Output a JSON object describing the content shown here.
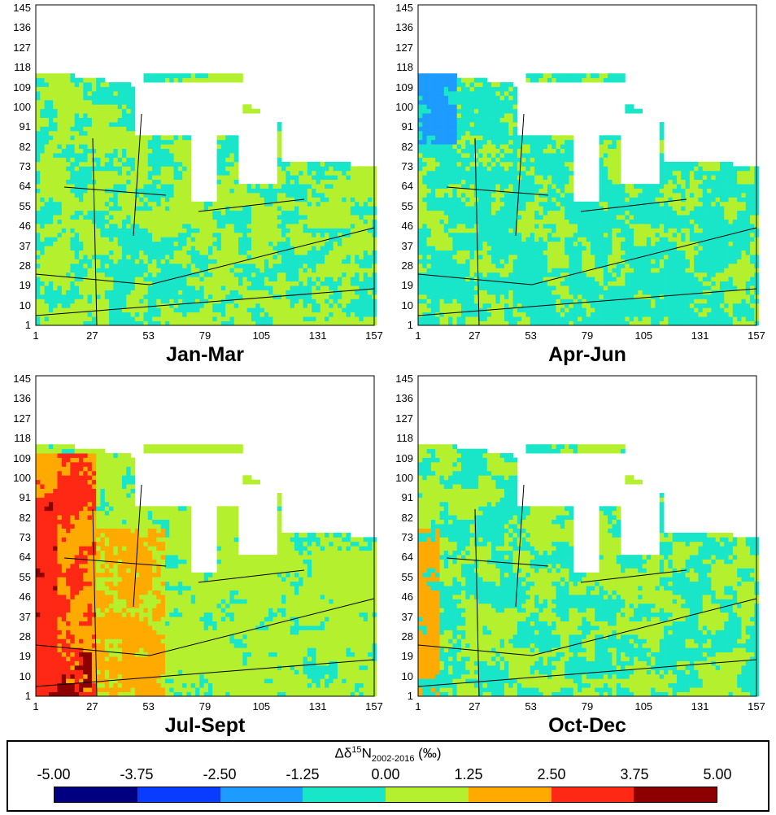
{
  "panels": [
    {
      "id": "jan-mar",
      "title": "Jan-Mar",
      "regime": 0
    },
    {
      "id": "apr-jun",
      "title": "Apr-Jun",
      "regime": 1
    },
    {
      "id": "jul-sept",
      "title": "Jul-Sept",
      "regime": 2
    },
    {
      "id": "oct-dec",
      "title": "Oct-Dec",
      "regime": 3
    }
  ],
  "y_ticks": [
    "145",
    "136",
    "127",
    "118",
    "109",
    "100",
    "91",
    "82",
    "73",
    "64",
    "55",
    "46",
    "37",
    "28",
    "19",
    "10",
    "1"
  ],
  "x_ticks": [
    "1",
    "27",
    "53",
    "79",
    "105",
    "131",
    "157"
  ],
  "legend": {
    "title_prefix": "Δδ",
    "title_sup": "15",
    "title_n": "N",
    "title_sub": "2002-2016",
    "title_suffix": " (‰)",
    "ticks": [
      "-5.00",
      "-3.75",
      "-2.50",
      "-1.25",
      "0.00",
      "1.25",
      "2.50",
      "3.75",
      "5.00"
    ],
    "colors": [
      "#000080",
      "#0a3cff",
      "#1e9bff",
      "#19e6c8",
      "#b4f02d",
      "#ffaa00",
      "#ff2814",
      "#8c0000"
    ]
  }
}
